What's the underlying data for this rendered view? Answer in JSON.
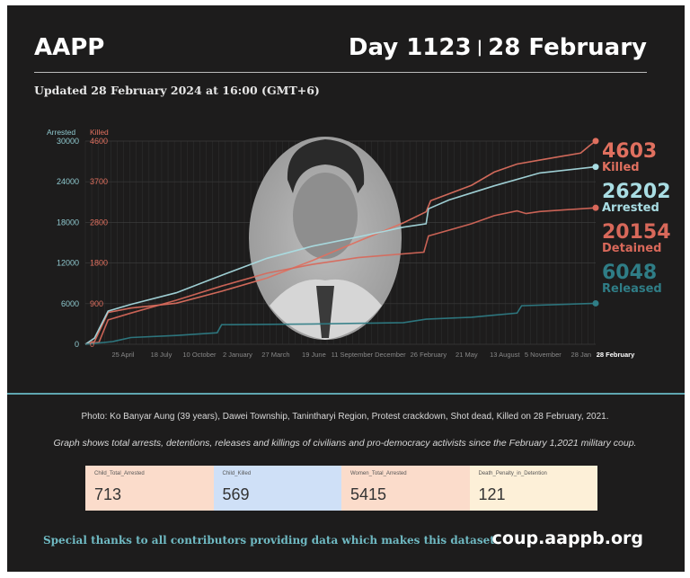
{
  "header": {
    "org": "AAPP",
    "day": "Day 1123",
    "separator": "|",
    "date": "28 February",
    "updated": "Updated 28 February 2024 at 16:00 (GMT+6)"
  },
  "colors": {
    "arrested": "#a9dde3",
    "killed": "#e0705f",
    "detained": "#d8685a",
    "released": "#2f7d86",
    "background": "#1d1c1c"
  },
  "chart_data": {
    "type": "line",
    "title": "",
    "x_unit": "days since 1 February 2021",
    "xlim": [
      0,
      1123
    ],
    "left_axis": {
      "label": "Arrested",
      "ticks": [
        0,
        6000,
        12000,
        18000,
        24000,
        30000
      ],
      "range": [
        0,
        30000
      ]
    },
    "right_axis_killed": {
      "label": "Killed",
      "ticks": [
        0,
        900,
        1800,
        2800,
        3700,
        4600
      ],
      "range": [
        0,
        4600
      ]
    },
    "x_ticks": [
      {
        "day": 83,
        "label": "25 April"
      },
      {
        "day": 167,
        "label": "18 July"
      },
      {
        "day": 251,
        "label": "10 October"
      },
      {
        "day": 335,
        "label": "2 January"
      },
      {
        "day": 419,
        "label": "27 March"
      },
      {
        "day": 503,
        "label": "19 June"
      },
      {
        "day": 587,
        "label": "11 September"
      },
      {
        "day": 671,
        "label": "December"
      },
      {
        "day": 755,
        "label": "26 February"
      },
      {
        "day": 839,
        "label": "21 May"
      },
      {
        "day": 923,
        "label": "13 August"
      },
      {
        "day": 1007,
        "label": "5 November"
      },
      {
        "day": 1091,
        "label": "28 Jan"
      },
      {
        "day": 1123,
        "label": "28 February"
      }
    ],
    "series": [
      {
        "name": "Killed",
        "axis": "killed",
        "final": "4603",
        "points": [
          [
            0,
            0
          ],
          [
            20,
            60
          ],
          [
            50,
            720
          ],
          [
            100,
            820
          ],
          [
            200,
            930
          ],
          [
            300,
            1200
          ],
          [
            400,
            1500
          ],
          [
            500,
            1900
          ],
          [
            600,
            2330
          ],
          [
            700,
            2750
          ],
          [
            750,
            3000
          ],
          [
            760,
            3250
          ],
          [
            850,
            3600
          ],
          [
            900,
            3900
          ],
          [
            950,
            4080
          ],
          [
            1000,
            4170
          ],
          [
            1050,
            4260
          ],
          [
            1090,
            4330
          ],
          [
            1110,
            4500
          ],
          [
            1123,
            4603
          ]
        ]
      },
      {
        "name": "Arrested",
        "axis": "arrested",
        "final": "26202",
        "points": [
          [
            0,
            0
          ],
          [
            20,
            900
          ],
          [
            50,
            4900
          ],
          [
            100,
            5900
          ],
          [
            200,
            7600
          ],
          [
            300,
            10200
          ],
          [
            400,
            12700
          ],
          [
            500,
            14500
          ],
          [
            600,
            15850
          ],
          [
            700,
            17300
          ],
          [
            750,
            17800
          ],
          [
            755,
            20000
          ],
          [
            800,
            21300
          ],
          [
            900,
            23400
          ],
          [
            1000,
            25300
          ],
          [
            1123,
            26202
          ]
        ]
      },
      {
        "name": "Detained",
        "axis": "arrested",
        "final": "20154",
        "points": [
          [
            0,
            0
          ],
          [
            30,
            300
          ],
          [
            50,
            3600
          ],
          [
            100,
            4600
          ],
          [
            200,
            6500
          ],
          [
            300,
            8600
          ],
          [
            400,
            10500
          ],
          [
            500,
            11800
          ],
          [
            600,
            12800
          ],
          [
            745,
            13600
          ],
          [
            755,
            16000
          ],
          [
            850,
            17800
          ],
          [
            900,
            19000
          ],
          [
            950,
            19700
          ],
          [
            970,
            19300
          ],
          [
            1000,
            19600
          ],
          [
            1123,
            20154
          ]
        ]
      },
      {
        "name": "Released",
        "axis": "arrested",
        "final": "6048",
        "points": [
          [
            0,
            0
          ],
          [
            60,
            400
          ],
          [
            100,
            1000
          ],
          [
            200,
            1300
          ],
          [
            290,
            1700
          ],
          [
            300,
            2900
          ],
          [
            500,
            3000
          ],
          [
            700,
            3200
          ],
          [
            750,
            3700
          ],
          [
            850,
            4000
          ],
          [
            900,
            4300
          ],
          [
            950,
            4600
          ],
          [
            960,
            5700
          ],
          [
            1123,
            6048
          ]
        ]
      }
    ]
  },
  "photo_caption": "Photo: Ko Banyar Aung (39 years), Dawei Township, Tanintharyi Region, Protest crackdown, Shot dead, Killed on 28 February, 2021.",
  "note": "Graph shows total arrests, detentions, releases and killings of civilians and pro-democracy activists since the February 1,2021 military coup.",
  "stats": [
    {
      "label": "Child_Total_Arrested",
      "value": "713",
      "color": "#fbdccb"
    },
    {
      "label": "Child_Killed",
      "value": "569",
      "color": "#cfe0f7"
    },
    {
      "label": "Women_Total_Arrested",
      "value": "5415",
      "color": "#fbdccb"
    },
    {
      "label": "Death_Penalty_in_Detention",
      "value": "121",
      "color": "#fdf0d8"
    }
  ],
  "footer": {
    "thanks": "Special thanks to all contributors providing data which makes this dataset.",
    "site": "coup.aappb.org"
  }
}
